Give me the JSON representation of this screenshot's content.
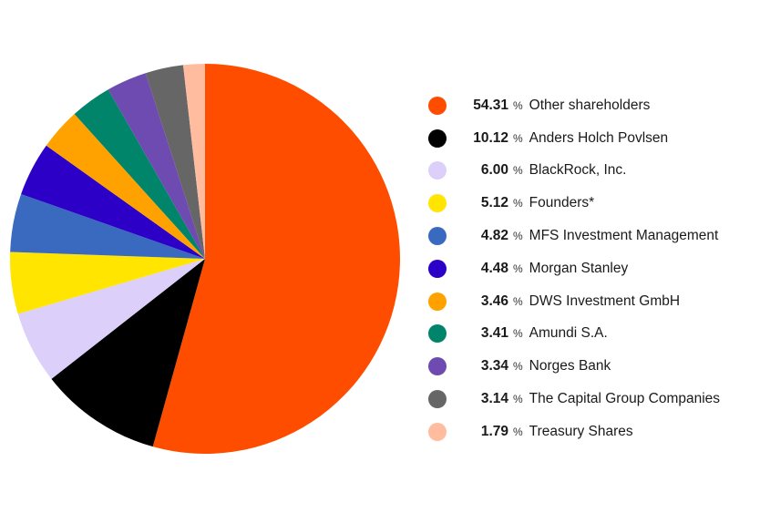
{
  "chart_data": {
    "type": "pie",
    "unit": "%",
    "start_angle_deg": 0,
    "direction": "clockwise",
    "legend_position": "right",
    "slices": [
      {
        "label": "Other shareholders",
        "value": 54.31,
        "value_text": "54.31",
        "color": "#ff4d00"
      },
      {
        "label": "Anders Holch Povlsen",
        "value": 10.12,
        "value_text": "10.12",
        "color": "#000000"
      },
      {
        "label": "BlackRock, Inc.",
        "value": 6.0,
        "value_text": "6.00",
        "color": "#dcd0fa"
      },
      {
        "label": "Founders*",
        "value": 5.12,
        "value_text": "5.12",
        "color": "#ffe500"
      },
      {
        "label": "MFS Investment Management",
        "value": 4.82,
        "value_text": "4.82",
        "color": "#3a6ac0"
      },
      {
        "label": "Morgan Stanley",
        "value": 4.48,
        "value_text": "4.48",
        "color": "#2c00c6"
      },
      {
        "label": "DWS Investment GmbH",
        "value": 3.46,
        "value_text": "3.46",
        "color": "#ffa200"
      },
      {
        "label": "Amundi S.A.",
        "value": 3.41,
        "value_text": "3.41",
        "color": "#00846a"
      },
      {
        "label": "Norges Bank",
        "value": 3.34,
        "value_text": "3.34",
        "color": "#6e4bb0"
      },
      {
        "label": "The Capital Group Companies",
        "value": 3.14,
        "value_text": "3.14",
        "color": "#666666"
      },
      {
        "label": "Treasury Shares",
        "value": 1.79,
        "value_text": "1.79",
        "color": "#ffbc9e"
      }
    ]
  }
}
